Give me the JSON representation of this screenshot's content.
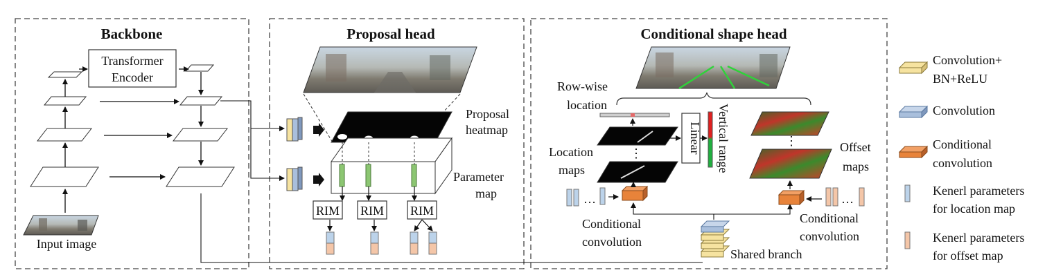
{
  "sections": {
    "backbone": "Backbone",
    "proposal": "Proposal head",
    "conditional": "Conditional shape head"
  },
  "labels": {
    "transformer_line1": "Transformer",
    "transformer_line2": "Encoder",
    "input_image": "Input image",
    "proposal_heatmap_1": "Proposal",
    "proposal_heatmap_2": "heatmap",
    "parameter_map_1": "Parameter",
    "parameter_map_2": "map",
    "rim": "RIM",
    "row_wise_1": "Row-wise",
    "row_wise_2": "location",
    "location_maps_1": "Location",
    "location_maps_2": "maps",
    "linear": "Linear",
    "vertical_range": "Vertical range",
    "offset_maps_1": "Offset",
    "offset_maps_2": "maps",
    "cond_conv_1": "Conditional",
    "cond_conv_2": "convolution",
    "shared_branch": "Shared branch",
    "ellipsis": "…",
    "vdots": "⋮"
  },
  "legend": [
    {
      "key": "conv_bn_relu",
      "line1": "Convolution+",
      "line2": "BN+ReLU",
      "color": "#f6e3a0",
      "side": "#d9c27a"
    },
    {
      "key": "conv",
      "line1": "Convolution",
      "line2": "",
      "color": "#a9bfdc",
      "side": "#7f98bd"
    },
    {
      "key": "cond_conv",
      "line1": "Conditional",
      "line2": "convolution",
      "color": "#e8833a",
      "side": "#b8602a"
    },
    {
      "key": "kernel_loc",
      "line1": "Kenerl parameters",
      "line2": "for location map",
      "color": "#bcd3ea",
      "side": "#8fb0d4"
    },
    {
      "key": "kernel_off",
      "line1": "Kenerl parameters",
      "line2": "for offset map",
      "color": "#f4c6a8",
      "side": "#d9a281"
    }
  ],
  "colors": {
    "border": "#444444",
    "green_slice": "#8cc672",
    "conv_yellow": "#f6e3a0",
    "conv_blue": "#a9bfdc",
    "cond_orange": "#e8833a",
    "kernel_blue": "#bcd3ea",
    "kernel_peach": "#f4c6a8"
  }
}
